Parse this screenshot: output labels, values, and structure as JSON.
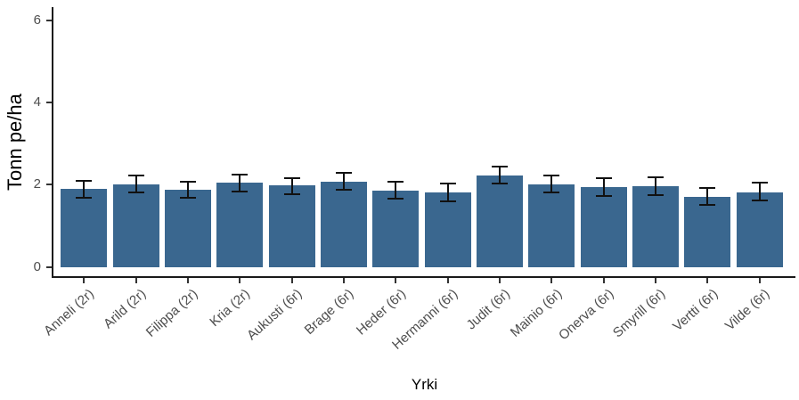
{
  "figure": {
    "background": "#ffffff",
    "bar_color": "#3a678f",
    "error_bar_color": "#111111",
    "axis_line_color": "#1a1a1a",
    "tick_label_color": "#4d4d4d",
    "axis_title_color": "#000000"
  },
  "chart_data": {
    "type": "bar",
    "title": "",
    "xlabel": "Yrki",
    "ylabel": "Tonn pe/ha",
    "ylim": [
      0,
      6.3
    ],
    "yticks": [
      0,
      2,
      4,
      6
    ],
    "grid": false,
    "legend": false,
    "error_bars": true,
    "categories": [
      "Anneli (2r)",
      "Arild (2r)",
      "Filippa (2r)",
      "Kria (2r)",
      "Aukusti (6r)",
      "Brage (6r)",
      "Heder (6r)",
      "Hermanni (6r)",
      "Judit (6r)",
      "Mainio (6r)",
      "Onerva (6r)",
      "Smyrill (6r)",
      "Vertti (6r)",
      "Vilde (6r)"
    ],
    "values": [
      1.89,
      2.0,
      1.87,
      2.04,
      1.98,
      2.08,
      1.86,
      1.81,
      2.23,
      2.01,
      1.94,
      1.96,
      1.71,
      1.82
    ],
    "error_low": [
      1.67,
      1.78,
      1.66,
      1.82,
      1.75,
      1.85,
      1.63,
      1.57,
      2.0,
      1.79,
      1.7,
      1.73,
      1.49,
      1.6
    ],
    "error_high": [
      2.11,
      2.24,
      2.09,
      2.26,
      2.18,
      2.32,
      2.09,
      2.05,
      2.46,
      2.25,
      2.18,
      2.2,
      1.94,
      2.07
    ]
  }
}
